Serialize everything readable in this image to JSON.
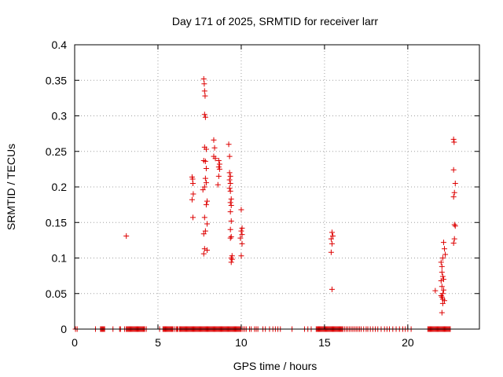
{
  "chart_data": {
    "type": "scatter",
    "title": "Day 171 of 2025, SRMTID for receiver larr",
    "xlabel": "GPS time / hours",
    "ylabel": "SRMTID / TECUs",
    "xlim": [
      0,
      24.3
    ],
    "ylim": [
      0,
      0.4
    ],
    "xticks": [
      0,
      5,
      10,
      15,
      20
    ],
    "yticks": [
      0,
      0.05,
      0.1,
      0.15,
      0.2,
      0.25,
      0.3,
      0.35,
      0.4
    ],
    "xtick_labels": [
      "0",
      "5",
      "10",
      "15",
      "20"
    ],
    "ytick_labels": [
      "0",
      "0.05",
      "0.1",
      "0.15",
      "0.2",
      "0.25",
      "0.3",
      "0.35",
      "0.4"
    ],
    "grid": true,
    "marker": "+",
    "series": [
      {
        "name": "SRMTID",
        "color": "#dd0000",
        "points": [
          [
            3.1,
            0.131
          ],
          [
            7.05,
            0.214
          ],
          [
            7.08,
            0.211
          ],
          [
            7.1,
            0.205
          ],
          [
            7.12,
            0.19
          ],
          [
            7.05,
            0.182
          ],
          [
            7.1,
            0.157
          ],
          [
            7.75,
            0.352
          ],
          [
            7.78,
            0.345
          ],
          [
            7.8,
            0.335
          ],
          [
            7.83,
            0.328
          ],
          [
            7.8,
            0.302
          ],
          [
            7.85,
            0.298
          ],
          [
            7.8,
            0.256
          ],
          [
            7.9,
            0.253
          ],
          [
            7.75,
            0.237
          ],
          [
            7.85,
            0.236
          ],
          [
            7.9,
            0.226
          ],
          [
            7.85,
            0.212
          ],
          [
            7.9,
            0.206
          ],
          [
            7.8,
            0.2
          ],
          [
            7.7,
            0.196
          ],
          [
            7.95,
            0.18
          ],
          [
            7.9,
            0.175
          ],
          [
            7.8,
            0.157
          ],
          [
            7.95,
            0.148
          ],
          [
            7.85,
            0.138
          ],
          [
            7.75,
            0.134
          ],
          [
            7.8,
            0.113
          ],
          [
            7.95,
            0.111
          ],
          [
            7.75,
            0.106
          ],
          [
            8.35,
            0.266
          ],
          [
            8.4,
            0.255
          ],
          [
            8.35,
            0.243
          ],
          [
            8.45,
            0.24
          ],
          [
            8.65,
            0.237
          ],
          [
            8.7,
            0.232
          ],
          [
            8.65,
            0.228
          ],
          [
            8.7,
            0.225
          ],
          [
            8.65,
            0.215
          ],
          [
            8.6,
            0.203
          ],
          [
            9.25,
            0.26
          ],
          [
            9.3,
            0.243
          ],
          [
            9.3,
            0.22
          ],
          [
            9.35,
            0.215
          ],
          [
            9.3,
            0.21
          ],
          [
            9.35,
            0.205
          ],
          [
            9.3,
            0.198
          ],
          [
            9.35,
            0.194
          ],
          [
            9.4,
            0.183
          ],
          [
            9.35,
            0.178
          ],
          [
            9.4,
            0.174
          ],
          [
            9.35,
            0.165
          ],
          [
            9.4,
            0.152
          ],
          [
            9.35,
            0.14
          ],
          [
            9.4,
            0.13
          ],
          [
            9.35,
            0.128
          ],
          [
            9.45,
            0.103
          ],
          [
            9.4,
            0.1
          ],
          [
            9.45,
            0.098
          ],
          [
            9.4,
            0.094
          ],
          [
            10.0,
            0.168
          ],
          [
            10.05,
            0.142
          ],
          [
            10.0,
            0.138
          ],
          [
            10.05,
            0.133
          ],
          [
            9.95,
            0.128
          ],
          [
            10.05,
            0.12
          ],
          [
            10.0,
            0.103
          ],
          [
            15.45,
            0.136
          ],
          [
            15.5,
            0.131
          ],
          [
            15.4,
            0.127
          ],
          [
            15.45,
            0.12
          ],
          [
            15.4,
            0.108
          ],
          [
            15.45,
            0.056
          ],
          [
            21.65,
            0.054
          ],
          [
            22.0,
            0.094
          ],
          [
            22.05,
            0.088
          ],
          [
            22.15,
            0.122
          ],
          [
            22.2,
            0.113
          ],
          [
            22.25,
            0.105
          ],
          [
            22.1,
            0.1
          ],
          [
            22.05,
            0.08
          ],
          [
            22.1,
            0.074
          ],
          [
            22.15,
            0.07
          ],
          [
            22.0,
            0.068
          ],
          [
            22.05,
            0.06
          ],
          [
            22.15,
            0.055
          ],
          [
            22.1,
            0.05
          ],
          [
            22.0,
            0.047
          ],
          [
            22.05,
            0.045
          ],
          [
            22.1,
            0.042
          ],
          [
            22.2,
            0.04
          ],
          [
            22.1,
            0.036
          ],
          [
            22.05,
            0.023
          ],
          [
            22.75,
            0.267
          ],
          [
            22.78,
            0.263
          ],
          [
            22.75,
            0.224
          ],
          [
            22.85,
            0.205
          ],
          [
            22.8,
            0.192
          ],
          [
            22.75,
            0.186
          ],
          [
            22.8,
            0.147
          ],
          [
            22.85,
            0.145
          ],
          [
            22.8,
            0.127
          ],
          [
            22.75,
            0.121
          ]
        ],
        "zero_x": [
          0.05,
          0.15,
          1.25,
          1.55,
          1.6,
          1.65,
          1.7,
          1.75,
          1.8,
          2.3,
          2.7,
          2.75,
          3.0,
          3.1,
          3.15,
          3.2,
          3.25,
          3.3,
          3.35,
          3.4,
          3.45,
          3.5,
          3.55,
          3.6,
          3.65,
          3.7,
          3.75,
          3.8,
          3.85,
          3.9,
          3.95,
          4.0,
          4.05,
          4.1,
          4.15,
          4.2,
          4.3,
          5.1,
          5.3,
          5.35,
          5.4,
          5.45,
          5.5,
          5.55,
          5.6,
          5.65,
          5.7,
          5.75,
          5.8,
          5.85,
          5.9,
          6.0,
          6.1,
          6.15,
          6.2,
          6.3,
          6.35,
          6.4,
          6.45,
          6.5,
          6.55,
          6.6,
          6.65,
          6.7,
          6.75,
          6.8,
          6.85,
          6.9,
          6.95,
          7.0,
          7.05,
          7.1,
          7.15,
          7.2,
          7.25,
          7.3,
          7.35,
          7.4,
          7.45,
          7.5,
          7.55,
          7.6,
          7.65,
          7.7,
          7.75,
          7.8,
          7.85,
          7.9,
          7.95,
          8.0,
          8.05,
          8.1,
          8.15,
          8.2,
          8.25,
          8.3,
          8.35,
          8.4,
          8.45,
          8.5,
          8.55,
          8.6,
          8.65,
          8.7,
          8.75,
          8.8,
          8.85,
          8.9,
          8.95,
          9.0,
          9.05,
          9.1,
          9.15,
          9.2,
          9.25,
          9.3,
          9.35,
          9.4,
          9.45,
          9.5,
          9.55,
          9.6,
          9.65,
          9.7,
          9.75,
          9.8,
          9.85,
          9.9,
          9.95,
          10.0,
          10.1,
          10.2,
          10.3,
          10.5,
          10.6,
          10.8,
          10.9,
          11.0,
          11.3,
          11.45,
          11.7,
          11.9,
          12.05,
          12.2,
          12.35,
          13.05,
          13.8,
          14.0,
          14.2,
          14.5,
          14.55,
          14.6,
          14.65,
          14.7,
          14.75,
          14.8,
          14.85,
          14.9,
          14.95,
          15.0,
          15.05,
          15.1,
          15.15,
          15.2,
          15.25,
          15.3,
          15.35,
          15.4,
          15.45,
          15.5,
          15.55,
          15.6,
          15.65,
          15.7,
          15.75,
          15.8,
          15.85,
          15.9,
          15.95,
          16.0,
          16.05,
          16.1,
          16.2,
          16.3,
          16.4,
          16.5,
          16.6,
          16.7,
          16.8,
          16.9,
          17.0,
          17.1,
          17.2,
          17.35,
          17.5,
          17.6,
          17.75,
          17.9,
          18.05,
          18.2,
          18.4,
          18.6,
          18.75,
          18.9,
          19.1,
          19.3,
          19.5,
          19.7,
          19.85,
          20.0,
          20.2,
          21.2,
          21.25,
          21.3,
          21.35,
          21.4,
          21.45,
          21.5,
          21.55,
          21.6,
          21.65,
          21.7,
          21.75,
          21.8,
          21.85,
          21.9,
          21.95,
          22.0,
          22.05,
          22.1,
          22.15,
          22.2,
          22.25,
          22.3,
          22.35,
          22.4,
          22.45,
          22.5,
          22.55
        ]
      }
    ]
  }
}
